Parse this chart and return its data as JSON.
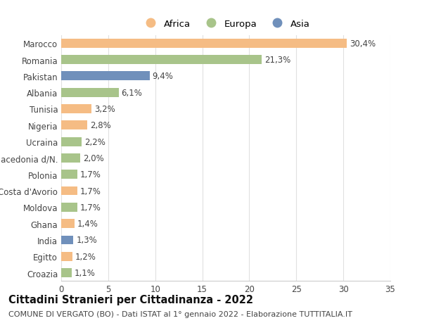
{
  "countries": [
    "Marocco",
    "Romania",
    "Pakistan",
    "Albania",
    "Tunisia",
    "Nigeria",
    "Ucraina",
    "Macedonia d/N.",
    "Polonia",
    "Costa d'Avorio",
    "Moldova",
    "Ghana",
    "India",
    "Egitto",
    "Croazia"
  ],
  "values": [
    30.4,
    21.3,
    9.4,
    6.1,
    3.2,
    2.8,
    2.2,
    2.0,
    1.7,
    1.7,
    1.7,
    1.4,
    1.3,
    1.2,
    1.1
  ],
  "labels": [
    "30,4%",
    "21,3%",
    "9,4%",
    "6,1%",
    "3,2%",
    "2,8%",
    "2,2%",
    "2,0%",
    "1,7%",
    "1,7%",
    "1,7%",
    "1,4%",
    "1,3%",
    "1,2%",
    "1,1%"
  ],
  "continents": [
    "Africa",
    "Europa",
    "Asia",
    "Europa",
    "Africa",
    "Africa",
    "Europa",
    "Europa",
    "Europa",
    "Africa",
    "Europa",
    "Africa",
    "Asia",
    "Africa",
    "Europa"
  ],
  "continent_colors": {
    "Africa": "#F5BC84",
    "Europa": "#A8C48A",
    "Asia": "#7090BB"
  },
  "title": "Cittadini Stranieri per Cittadinanza - 2022",
  "subtitle": "COMUNE DI VERGATO (BO) - Dati ISTAT al 1° gennaio 2022 - Elaborazione TUTTITALIA.IT",
  "xlim": [
    0,
    35
  ],
  "xticks": [
    0,
    5,
    10,
    15,
    20,
    25,
    30,
    35
  ],
  "background_color": "#ffffff",
  "grid_color": "#e0e0e0",
  "bar_height": 0.55,
  "label_fontsize": 8.5,
  "tick_fontsize": 8.5,
  "title_fontsize": 10.5,
  "subtitle_fontsize": 8
}
